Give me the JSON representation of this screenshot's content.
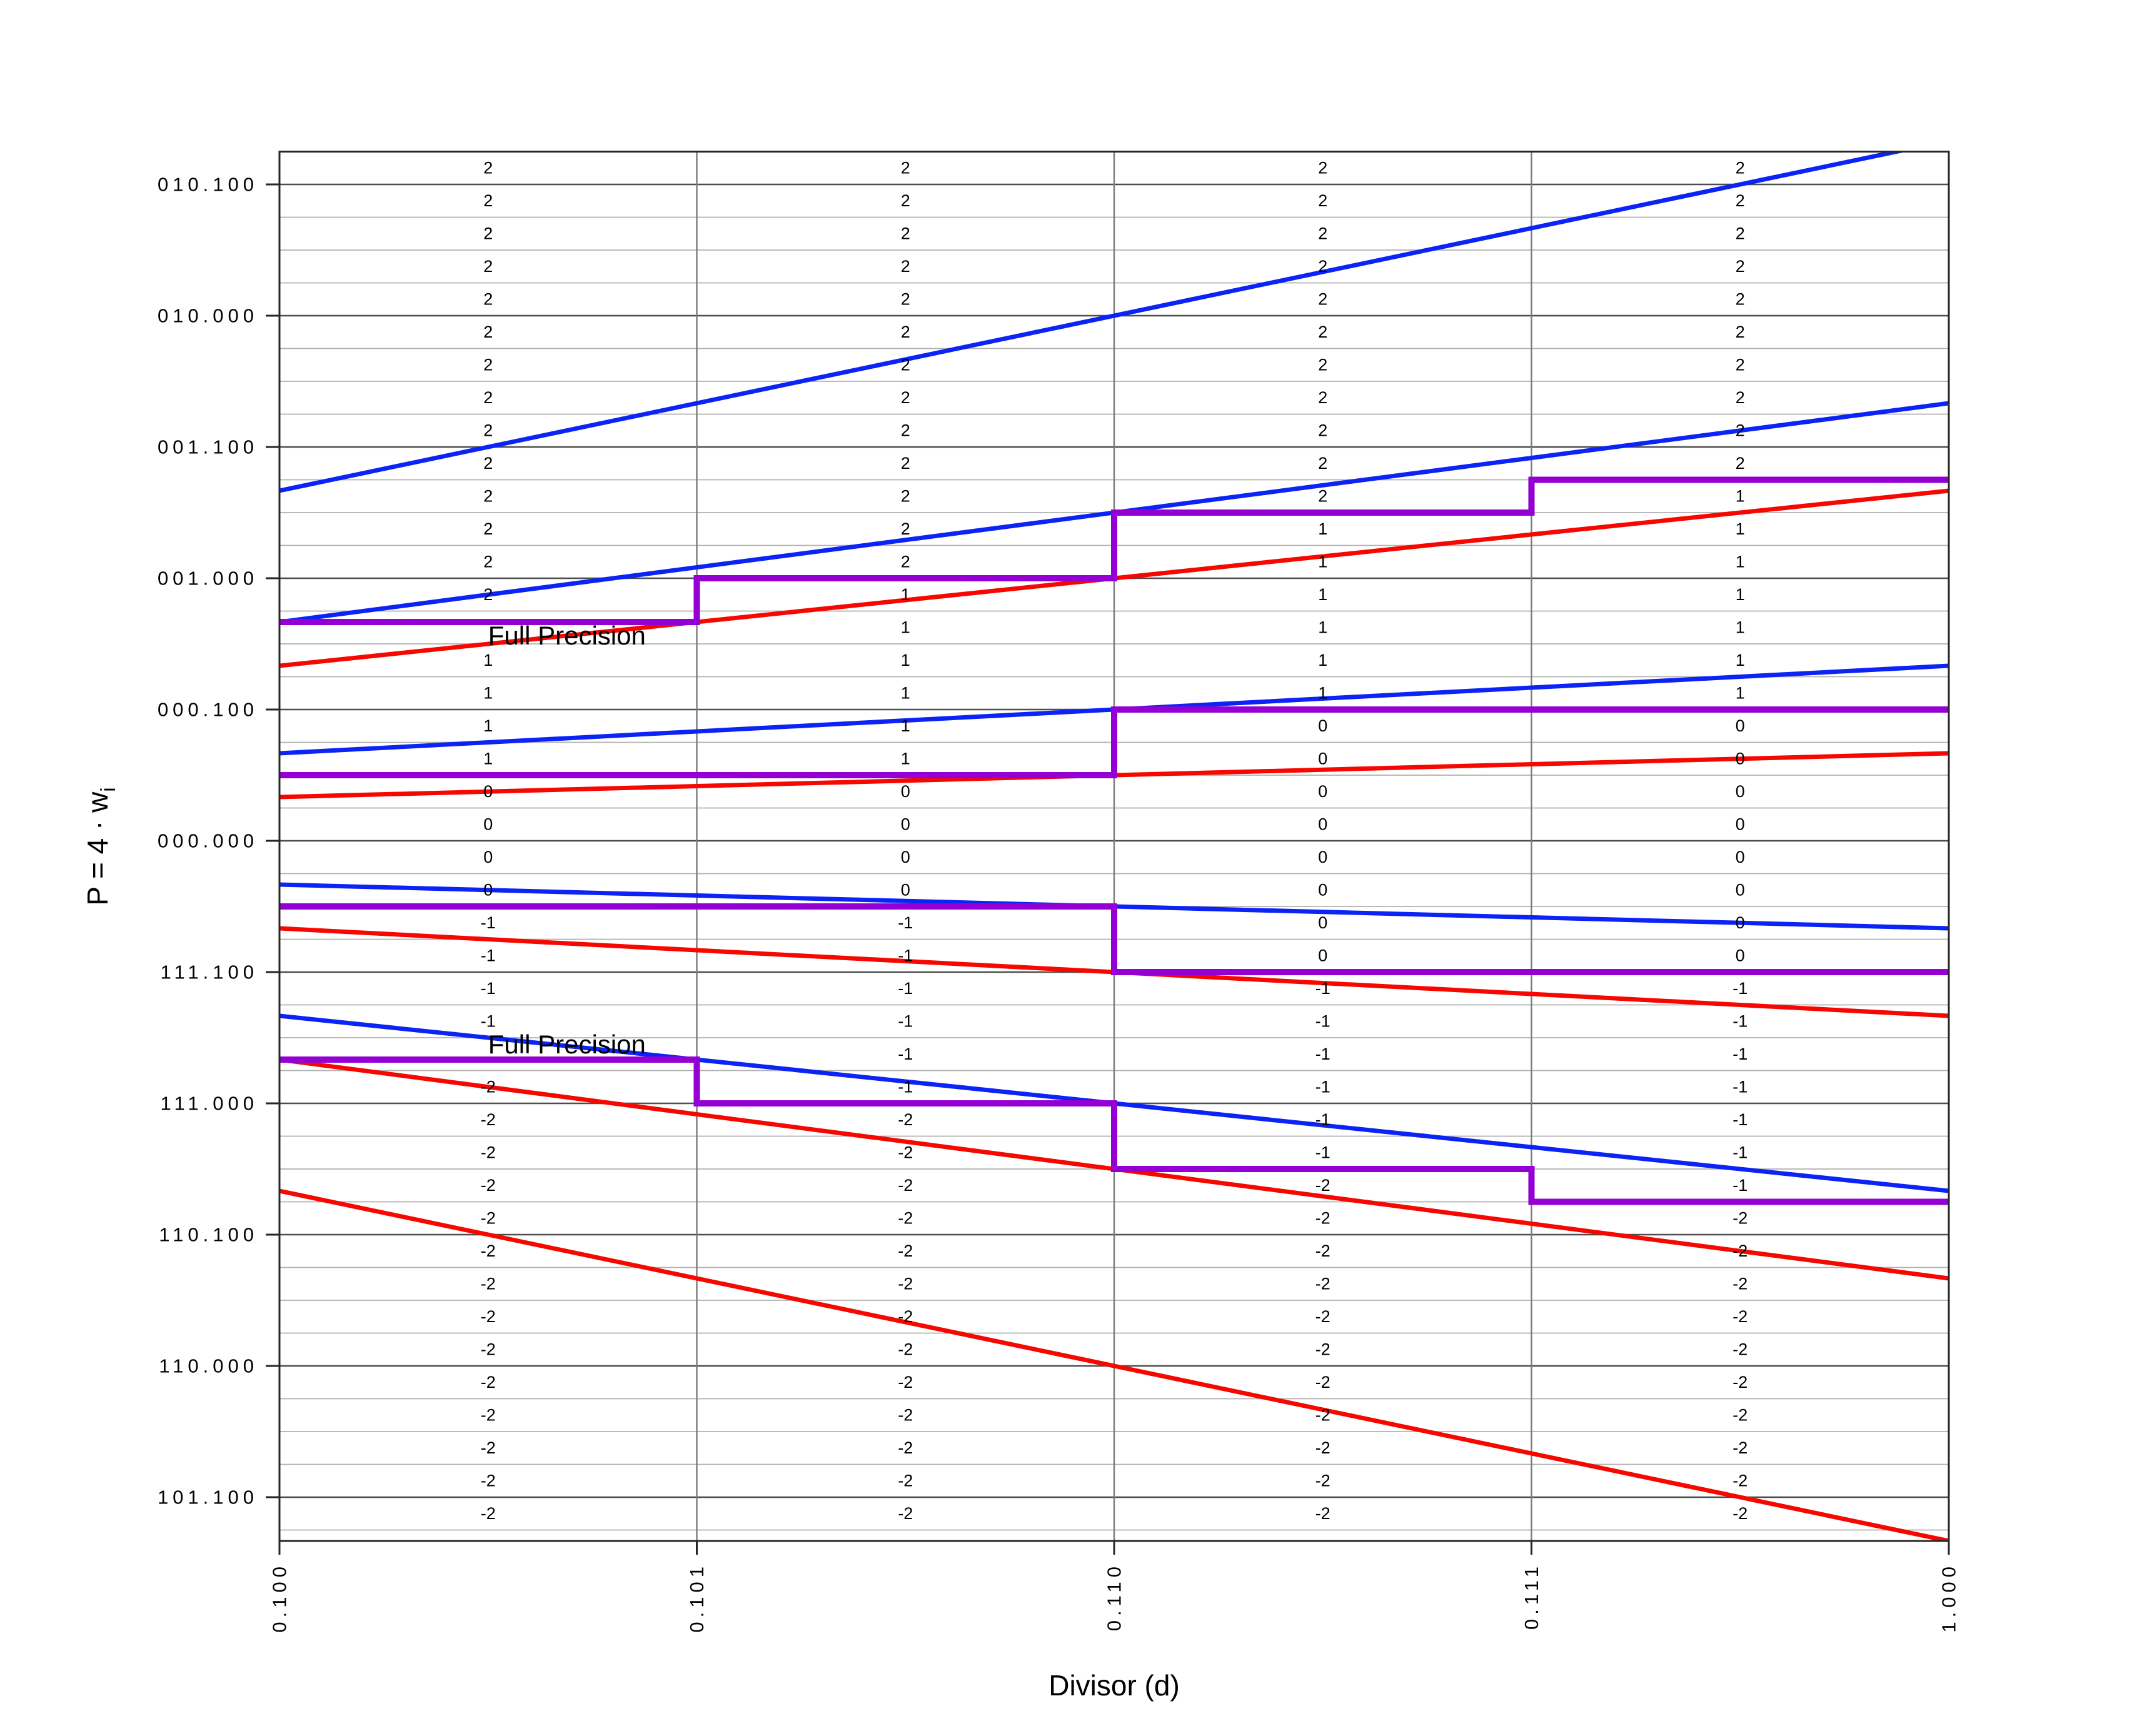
{
  "figure": {
    "x_axis_title": "Divisor (d)",
    "y_axis_title_main": "P = 4 · w",
    "y_axis_title_sub": "i"
  },
  "style": {
    "background": "#ffffff",
    "upper_bound_color": "#0b24f5",
    "lower_bound_color": "#f50800",
    "staircase_color": "#9400d3",
    "minor_grid_color": "#b0b0b0",
    "major_grid_color": "#4d4d4d",
    "vertical_grid_color": "#7a7a7a",
    "frame_color": "#262626",
    "text_color": "#000000"
  },
  "chart_data": {
    "type": "line",
    "title": "",
    "xlabel": "Divisor (d)",
    "ylabel": "P = 4 · w_i",
    "xlim": [
      0.5,
      1.0
    ],
    "ylim": [
      -2.66667,
      2.625
    ],
    "grid": "on",
    "y_grid_step": 0.125,
    "x_ticks": [
      {
        "value": 0.5,
        "label": "0.100"
      },
      {
        "value": 0.625,
        "label": "0.101"
      },
      {
        "value": 0.75,
        "label": "0.110"
      },
      {
        "value": 0.875,
        "label": "0.111"
      },
      {
        "value": 1.0,
        "label": "1.000"
      }
    ],
    "y_ticks": [
      {
        "value": 2.5,
        "label": "010.100"
      },
      {
        "value": 2.0,
        "label": "010.000"
      },
      {
        "value": 1.5,
        "label": "001.100"
      },
      {
        "value": 1.0,
        "label": "001.000"
      },
      {
        "value": 0.5,
        "label": "000.100"
      },
      {
        "value": 0.0,
        "label": "000.000"
      },
      {
        "value": -0.5,
        "label": "111.100"
      },
      {
        "value": -1.0,
        "label": "111.000"
      },
      {
        "value": -1.5,
        "label": "110.100"
      },
      {
        "value": -2.0,
        "label": "110.000"
      },
      {
        "value": -2.5,
        "label": "101.100"
      }
    ],
    "upper_bound_lines": {
      "color": "#0b24f5",
      "comment": "P = (k + 2/3) * d for k = 2,1,0,-1,-2; drawn from d=0.5 to d=1.0, clipped to plot",
      "series": [
        {
          "name": "U2",
          "slope": 2.66667
        },
        {
          "name": "U1",
          "slope": 1.66667
        },
        {
          "name": "U0",
          "slope": 0.66667
        },
        {
          "name": "U-1",
          "slope": -0.33333
        },
        {
          "name": "U-2",
          "slope": -1.33333
        }
      ]
    },
    "lower_bound_lines": {
      "color": "#f50800",
      "comment": "P = (k - 2/3) * d for k = 2,1,0,-1,-2",
      "series": [
        {
          "name": "L2",
          "slope": 1.33333
        },
        {
          "name": "L1",
          "slope": 0.33333
        },
        {
          "name": "L0",
          "slope": -0.66667
        },
        {
          "name": "L-1",
          "slope": -1.66667
        },
        {
          "name": "L-2",
          "slope": -2.66667
        }
      ]
    },
    "selection_staircases": {
      "color": "#9400d3",
      "breakpoints": [
        0.5,
        0.625,
        0.75,
        0.875,
        1.0
      ],
      "series": [
        {
          "name": "boundary q2/q1",
          "levels": [
            0.83333,
            1.0,
            1.25,
            1.375
          ]
        },
        {
          "name": "boundary q1/q0",
          "levels": [
            0.25,
            0.25,
            0.5,
            0.5
          ]
        },
        {
          "name": "boundary q0/q-1",
          "levels": [
            -0.25,
            -0.25,
            -0.5,
            -0.5
          ]
        },
        {
          "name": "boundary q-1/q-2",
          "levels": [
            -0.83333,
            -1.0,
            -1.25,
            -1.375
          ]
        }
      ]
    },
    "digit_cells": {
      "column_centers": [
        0.5625,
        0.6875,
        0.8125,
        0.9375
      ],
      "row_top": 2.625,
      "row_height": 0.125,
      "rows": [
        [
          "2",
          "2",
          "2",
          "2"
        ],
        [
          "2",
          "2",
          "2",
          "2"
        ],
        [
          "2",
          "2",
          "2",
          "2"
        ],
        [
          "2",
          "2",
          "2",
          "2"
        ],
        [
          "2",
          "2",
          "2",
          "2"
        ],
        [
          "2",
          "2",
          "2",
          "2"
        ],
        [
          "2",
          "2",
          "2",
          "2"
        ],
        [
          "2",
          "2",
          "2",
          "2"
        ],
        [
          "2",
          "2",
          "2",
          "2"
        ],
        [
          "2",
          "2",
          "2",
          "2"
        ],
        [
          "2",
          "2",
          "2",
          "1"
        ],
        [
          "2",
          "2",
          "1",
          "1"
        ],
        [
          "2",
          "2",
          "1",
          "1"
        ],
        [
          "2",
          "1",
          "1",
          "1"
        ],
        [
          null,
          "1",
          "1",
          "1"
        ],
        [
          "1",
          "1",
          "1",
          "1"
        ],
        [
          "1",
          "1",
          "1",
          "1"
        ],
        [
          "1",
          "1",
          "0",
          "0"
        ],
        [
          "1",
          "1",
          "0",
          "0"
        ],
        [
          "0",
          "0",
          "0",
          "0"
        ],
        [
          "0",
          "0",
          "0",
          "0"
        ],
        [
          "0",
          "0",
          "0",
          "0"
        ],
        [
          "0",
          "0",
          "0",
          "0"
        ],
        [
          "-1",
          "-1",
          "0",
          "0"
        ],
        [
          "-1",
          "-1",
          "0",
          "0"
        ],
        [
          "-1",
          "-1",
          "-1",
          "-1"
        ],
        [
          "-1",
          "-1",
          "-1",
          "-1"
        ],
        [
          null,
          "-1",
          "-1",
          "-1"
        ],
        [
          "-2",
          "-1",
          "-1",
          "-1"
        ],
        [
          "-2",
          "-2",
          "-1",
          "-1"
        ],
        [
          "-2",
          "-2",
          "-1",
          "-1"
        ],
        [
          "-2",
          "-2",
          "-2",
          "-1"
        ],
        [
          "-2",
          "-2",
          "-2",
          "-2"
        ],
        [
          "-2",
          "-2",
          "-2",
          "-2"
        ],
        [
          "-2",
          "-2",
          "-2",
          "-2"
        ],
        [
          "-2",
          "-2",
          "-2",
          "-2"
        ],
        [
          "-2",
          "-2",
          "-2",
          "-2"
        ],
        [
          "-2",
          "-2",
          "-2",
          "-2"
        ],
        [
          "-2",
          "-2",
          "-2",
          "-2"
        ],
        [
          "-2",
          "-2",
          "-2",
          "-2"
        ],
        [
          "-2",
          "-2",
          "-2",
          "-2"
        ],
        [
          "-2",
          "-2",
          "-2",
          "-2"
        ]
      ]
    },
    "annotations": [
      {
        "text": "Full Precision",
        "d": 0.5625,
        "p": 0.83333,
        "placement": "below-line"
      },
      {
        "text": "Full Precision",
        "d": 0.5625,
        "p": -0.83333,
        "placement": "above-line"
      }
    ]
  }
}
